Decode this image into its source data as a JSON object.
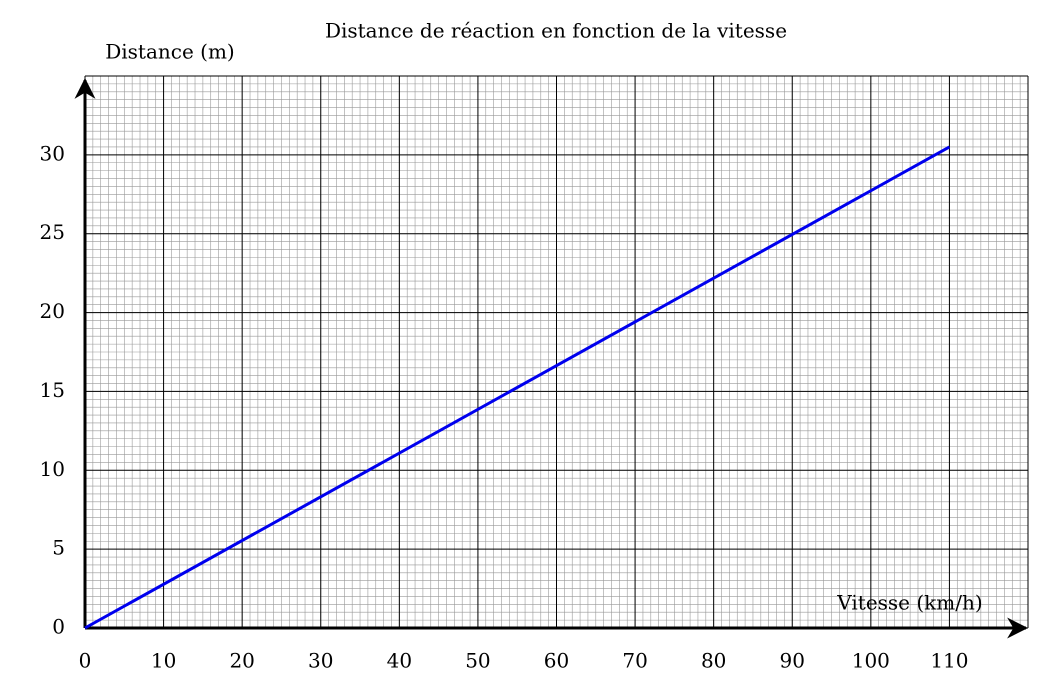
{
  "chart_data": {
    "type": "line",
    "title": "Distance de réaction en fonction de la vitesse",
    "x_label": "Vitesse (km/h)",
    "y_label": "Distance (m)",
    "x": [
      0,
      110
    ],
    "values": [
      0,
      30.5
    ],
    "color": "#0000ee",
    "xlim": [
      0,
      120
    ],
    "ylim": [
      0,
      35
    ],
    "xticks": [
      0,
      10,
      20,
      30,
      40,
      50,
      60,
      70,
      80,
      90,
      100,
      110
    ],
    "yticks": [
      0,
      5,
      10,
      15,
      20,
      25,
      30
    ],
    "grid": true
  }
}
